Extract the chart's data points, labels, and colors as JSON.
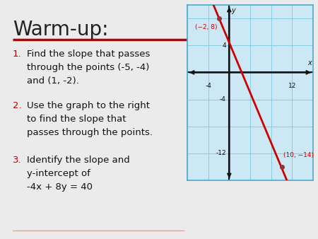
{
  "title": "Warm-up:",
  "title_fontsize": 20,
  "title_color": "#222222",
  "underline_color": "#bb0000",
  "background_color": "#ebebeb",
  "graph_bg_color": "#cce8f4",
  "graph_border_color": "#4aabcc",
  "grid_color": "#7ec8e0",
  "axis_color": "#111111",
  "item_fontsize": 9.5,
  "item_color": "#111111",
  "item_number_color": "#bb0000",
  "items_numbered": [
    "1.",
    "2.",
    "3."
  ],
  "items_text": [
    "Find the slope that passes\nthrough the points (-5, -4)\nand (1, -2).",
    "Use the graph to the right\nto find the slope that\npasses through the points.",
    "Identify the slope and\ny-intercept of\n-4x + 8y = 40"
  ],
  "point1": [
    -2,
    8
  ],
  "point2": [
    10,
    -14
  ],
  "point1_label": "(−2, 8)",
  "point2_label": "(10, −14)",
  "xmin": -8,
  "xmax": 16,
  "ymin": -16,
  "ymax": 10,
  "xtick_labels": [
    [
      -4,
      "-4"
    ],
    [
      12,
      "12"
    ]
  ],
  "ytick_labels": [
    [
      4,
      "4"
    ],
    [
      -4,
      "-4"
    ],
    [
      -12,
      "-12"
    ]
  ],
  "graph_line_color": "#cc0000",
  "point_color": "#993333",
  "label_color": "#cc0000",
  "bottom_line_color": "#c8a090"
}
